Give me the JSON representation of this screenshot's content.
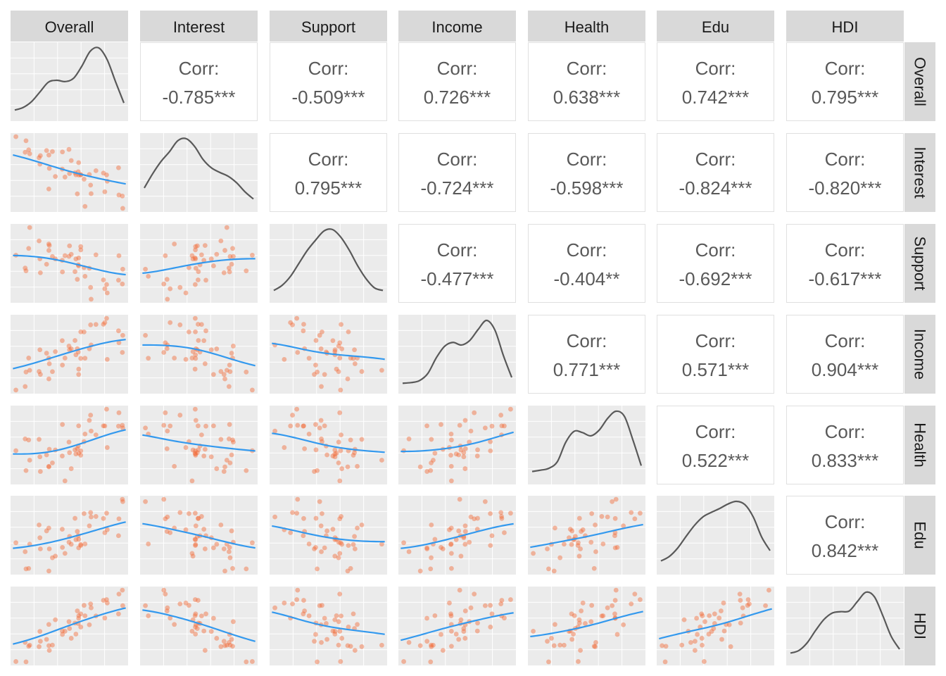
{
  "variables": [
    "Overall",
    "Interest",
    "Support",
    "Income",
    "Health",
    "Edu",
    "HDI"
  ],
  "corr_label": "Corr:",
  "colors": {
    "panel_bg": "#ebebeb",
    "grid": "#ffffff",
    "strip_bg": "#d9d9d9",
    "strip_text": "#1a1a1a",
    "corr_text": "#595959",
    "density_line": "#595959",
    "points": "#f26b38",
    "smooth": "#3399ee",
    "panel_border": "#e0e0e0"
  },
  "chart_data": {
    "type": "scatter-matrix",
    "lower_panels": "scatter with loess smoother",
    "diagonal_panels": "density",
    "upper_panels": "correlation coefficient",
    "correlations": [
      {
        "row": "Overall",
        "col": "Interest",
        "value": "-0.785***"
      },
      {
        "row": "Overall",
        "col": "Support",
        "value": "-0.509***"
      },
      {
        "row": "Overall",
        "col": "Income",
        "value": "0.726***"
      },
      {
        "row": "Overall",
        "col": "Health",
        "value": "0.638***"
      },
      {
        "row": "Overall",
        "col": "Edu",
        "value": "0.742***"
      },
      {
        "row": "Overall",
        "col": "HDI",
        "value": "0.795***"
      },
      {
        "row": "Interest",
        "col": "Support",
        "value": "0.795***"
      },
      {
        "row": "Interest",
        "col": "Income",
        "value": "-0.724***"
      },
      {
        "row": "Interest",
        "col": "Health",
        "value": "-0.598***"
      },
      {
        "row": "Interest",
        "col": "Edu",
        "value": "-0.824***"
      },
      {
        "row": "Interest",
        "col": "HDI",
        "value": "-0.820***"
      },
      {
        "row": "Support",
        "col": "Income",
        "value": "-0.477***"
      },
      {
        "row": "Support",
        "col": "Health",
        "value": "-0.404**"
      },
      {
        "row": "Support",
        "col": "Edu",
        "value": "-0.692***"
      },
      {
        "row": "Support",
        "col": "HDI",
        "value": "-0.617***"
      },
      {
        "row": "Income",
        "col": "Health",
        "value": "0.771***"
      },
      {
        "row": "Income",
        "col": "Edu",
        "value": "0.571***"
      },
      {
        "row": "Income",
        "col": "HDI",
        "value": "0.904***"
      },
      {
        "row": "Health",
        "col": "Edu",
        "value": "0.522***"
      },
      {
        "row": "Health",
        "col": "HDI",
        "value": "0.833***"
      },
      {
        "row": "Edu",
        "col": "HDI",
        "value": "0.842***"
      }
    ],
    "densities": {
      "Overall": [
        0.04,
        0.08,
        0.17,
        0.32,
        0.47,
        0.5,
        0.48,
        0.53,
        0.72,
        0.95,
        1.0,
        0.82,
        0.48,
        0.15
      ],
      "Interest": [
        0.24,
        0.46,
        0.65,
        0.8,
        0.97,
        1.0,
        0.88,
        0.68,
        0.55,
        0.48,
        0.42,
        0.32,
        0.18,
        0.07
      ],
      "Support": [
        0.06,
        0.14,
        0.28,
        0.48,
        0.68,
        0.84,
        0.98,
        1.0,
        0.88,
        0.68,
        0.44,
        0.24,
        0.1,
        0.06
      ],
      "Income": [
        0.03,
        0.04,
        0.07,
        0.18,
        0.42,
        0.6,
        0.66,
        0.62,
        0.69,
        0.86,
        1.0,
        0.85,
        0.46,
        0.12
      ],
      "Health": [
        0.07,
        0.09,
        0.12,
        0.22,
        0.52,
        0.69,
        0.67,
        0.62,
        0.71,
        0.89,
        1.0,
        0.92,
        0.56,
        0.16
      ],
      "Edu": [
        0.08,
        0.15,
        0.28,
        0.46,
        0.63,
        0.76,
        0.83,
        0.89,
        0.96,
        1.0,
        0.95,
        0.76,
        0.45,
        0.24
      ],
      "HDI": [
        0.06,
        0.1,
        0.22,
        0.41,
        0.58,
        0.68,
        0.7,
        0.71,
        0.86,
        1.0,
        0.93,
        0.64,
        0.32,
        0.12
      ]
    }
  }
}
